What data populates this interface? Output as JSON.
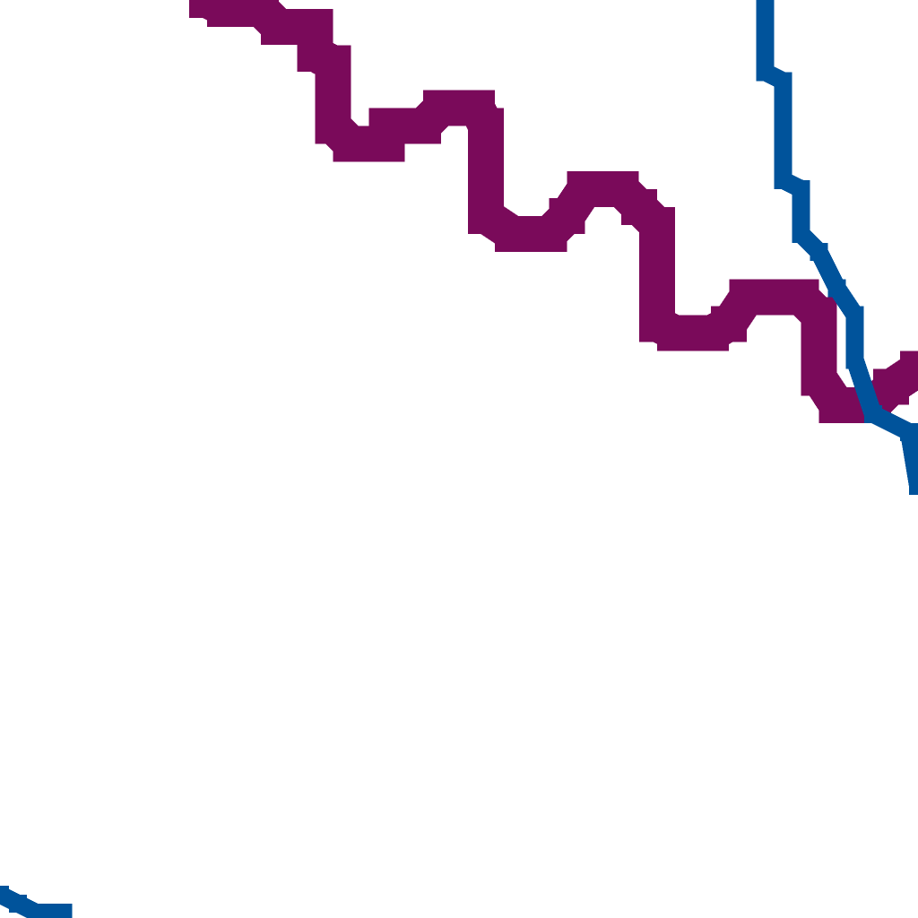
{
  "chart_data": {
    "type": "line",
    "title": "",
    "xlabel": "",
    "ylabel": "",
    "grid": false,
    "xlim": [
      0,
      51
    ],
    "ylim": [
      0,
      51
    ],
    "series": [
      {
        "color": "#7a0a5a",
        "stroke_style": "thick-pixelated",
        "points": [
          [
            11.5,
            51
          ],
          [
            12.5,
            50.5
          ],
          [
            14.5,
            50.5
          ],
          [
            15.5,
            49.5
          ],
          [
            17.5,
            49.5
          ],
          [
            17.5,
            48
          ],
          [
            18.5,
            47.5
          ],
          [
            18.5,
            44
          ],
          [
            19.5,
            43
          ],
          [
            21.5,
            43
          ],
          [
            21.5,
            44
          ],
          [
            23.5,
            44
          ],
          [
            24.5,
            45
          ],
          [
            26.5,
            45
          ],
          [
            27,
            44
          ],
          [
            27,
            39
          ],
          [
            28.5,
            38
          ],
          [
            30.5,
            38
          ],
          [
            31.5,
            39
          ],
          [
            32.5,
            40.5
          ],
          [
            34.5,
            40.5
          ],
          [
            35.5,
            39.5
          ],
          [
            36.5,
            38.5
          ],
          [
            36.5,
            33
          ],
          [
            37.5,
            32.5
          ],
          [
            39.5,
            32.5
          ],
          [
            40.5,
            33
          ],
          [
            41.5,
            34.5
          ],
          [
            44.5,
            34.5
          ],
          [
            45.5,
            33.5
          ],
          [
            45.5,
            30
          ],
          [
            46.5,
            28.5
          ],
          [
            48.5,
            28.5
          ],
          [
            49.5,
            29.5
          ],
          [
            51,
            30.5
          ]
        ]
      },
      {
        "color": "#00539b",
        "stroke_style": "thin-pixelated",
        "points": [
          [
            42.5,
            51
          ],
          [
            42.5,
            47
          ],
          [
            43.5,
            46.5
          ],
          [
            43.5,
            41
          ],
          [
            44.5,
            40.5
          ],
          [
            44.5,
            38
          ],
          [
            45.5,
            37
          ],
          [
            46.5,
            35
          ],
          [
            47.5,
            33.5
          ],
          [
            47.5,
            31
          ],
          [
            48.5,
            28
          ],
          [
            50.5,
            27
          ],
          [
            51,
            24
          ]
        ]
      },
      {
        "color": "#00539b",
        "stroke_style": "thin-pixelated",
        "points": [
          [
            0,
            1.3
          ],
          [
            1,
            0.8
          ],
          [
            2,
            0.3
          ],
          [
            3.5,
            0.3
          ]
        ]
      }
    ]
  }
}
